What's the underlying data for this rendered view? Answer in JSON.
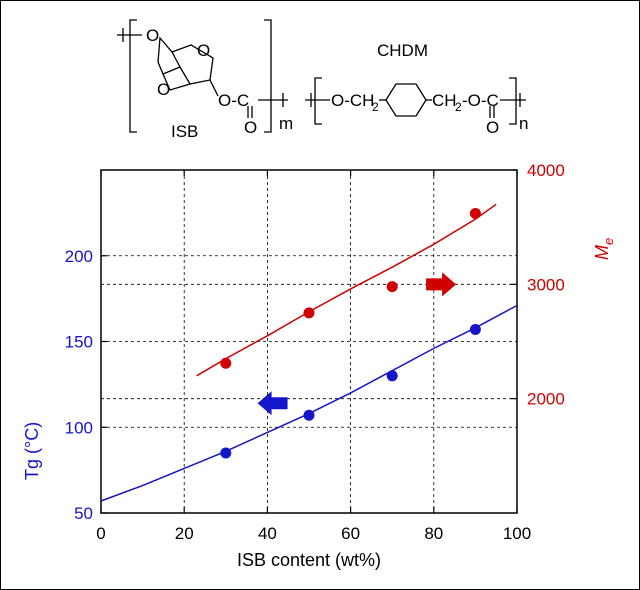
{
  "structure": {
    "isb_label": "ISB",
    "chdm_label": "CHDM",
    "sub_m": "m",
    "sub_n": "n",
    "o_atom": "O",
    "c_atom": "C",
    "ester_left": "O-C",
    "chdm_left": "O-CH",
    "chdm_sub2": "2",
    "chdm_right": "CH",
    "chdm_right_tail": "-O-C"
  },
  "chart_data": {
    "type": "scatter",
    "xlabel": "ISB content (wt%)",
    "xlim": [
      0,
      100
    ],
    "x_ticks": [
      "0",
      "20",
      "40",
      "60",
      "80",
      "100"
    ],
    "y_left": {
      "label_main": "Tg (",
      "label_unit": "°C",
      "label_close": ")",
      "ylim": [
        50,
        250
      ],
      "ticks": [
        "50",
        "100",
        "150",
        "200"
      ],
      "color": "#1515c9"
    },
    "y_right": {
      "label": "M",
      "label_sub": "e",
      "ylim": [
        1000,
        4000
      ],
      "ticks": [
        "2000",
        "3000",
        "4000"
      ],
      "color": "#d10000"
    },
    "grid": true,
    "series": [
      {
        "axis": "left",
        "color": "#1515c9",
        "x": [
          30,
          50,
          70,
          90
        ],
        "y": [
          85,
          107,
          130,
          157
        ],
        "fit_x": [
          0,
          10,
          20,
          30,
          40,
          50,
          60,
          70,
          80,
          90,
          100
        ],
        "fit_y": [
          57,
          66,
          76,
          86,
          97,
          108,
          120,
          133,
          146,
          158,
          171
        ]
      },
      {
        "axis": "right",
        "color": "#d10000",
        "x": [
          30,
          50,
          70,
          90
        ],
        "y": [
          2310,
          2750,
          2980,
          3620
        ],
        "fit_x": [
          23,
          30,
          40,
          50,
          60,
          70,
          80,
          90,
          95
        ],
        "fit_y": [
          2200,
          2350,
          2550,
          2760,
          2960,
          3150,
          3350,
          3570,
          3700
        ]
      }
    ],
    "arrows": [
      {
        "direction": "left",
        "color": "#1515c9",
        "x": 41,
        "y_left": 114
      },
      {
        "direction": "right",
        "color": "#d10000",
        "x": 82,
        "y_right": 3000
      }
    ]
  }
}
